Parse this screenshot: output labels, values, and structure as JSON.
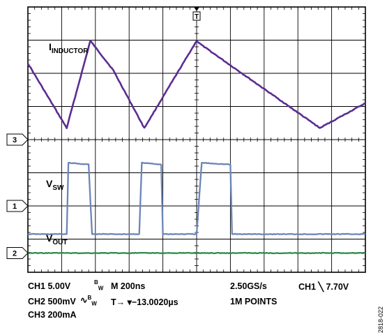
{
  "chart_data": {
    "type": "line",
    "title": "",
    "xlabel": "",
    "ylabel": "",
    "grid": true,
    "grid_divisions": {
      "x": 10,
      "y": 8
    },
    "x_unit": "ns",
    "xlim": [
      0,
      2000
    ],
    "ylim": [
      -4,
      4
    ],
    "trigger_marker": "T",
    "series": [
      {
        "name": "IINDUCTOR",
        "label_main": "I",
        "label_sub": "INDUCTOR",
        "color": "#5b2d91",
        "channel_marker": "3",
        "points": [
          [
            0,
            2.3
          ],
          [
            230,
            0.35
          ],
          [
            370,
            2.98
          ],
          [
            505,
            2.1
          ],
          [
            690,
            0.35
          ],
          [
            1000,
            2.98
          ],
          [
            1030,
            2.85
          ],
          [
            1730,
            0.35
          ],
          [
            2000,
            1.1
          ]
        ]
      },
      {
        "name": "VSW",
        "label_main": "V",
        "label_sub": "SW",
        "color": "#6b85b9",
        "channel_marker": "1",
        "points": [
          [
            0,
            -2.85
          ],
          [
            230,
            -2.85
          ],
          [
            240,
            -0.7
          ],
          [
            360,
            -0.75
          ],
          [
            380,
            -2.85
          ],
          [
            660,
            -2.85
          ],
          [
            675,
            -0.7
          ],
          [
            790,
            -0.75
          ],
          [
            800,
            -2.85
          ],
          [
            1000,
            -2.85
          ],
          [
            1030,
            -0.7
          ],
          [
            1200,
            -0.75
          ],
          [
            1210,
            -2.85
          ],
          [
            2000,
            -2.85
          ]
        ]
      },
      {
        "name": "VOUT",
        "label_main": "V",
        "label_sub": "OUT",
        "color": "#2e8b4a",
        "channel_marker": "2",
        "points": [
          [
            0,
            -3.42
          ],
          [
            2000,
            -3.42
          ]
        ]
      }
    ]
  },
  "status_lines": {
    "ch1": "CH1 5.00V",
    "bw1": "B",
    "bw1_sub": "W",
    "timebase": "M 200ns",
    "sample_rate": "2.50GS/s",
    "trigger": "CH1 ╲ 7.70V",
    "ch2": "CH2 500mV",
    "bw2_prefix": "∿",
    "bw2": "B",
    "bw2_sub": "W",
    "trigger_pos": "T→ ▾−13.0020µs",
    "record": "1M POINTS",
    "ch3": "CH3 200mA"
  },
  "figure_id": "2818-022"
}
